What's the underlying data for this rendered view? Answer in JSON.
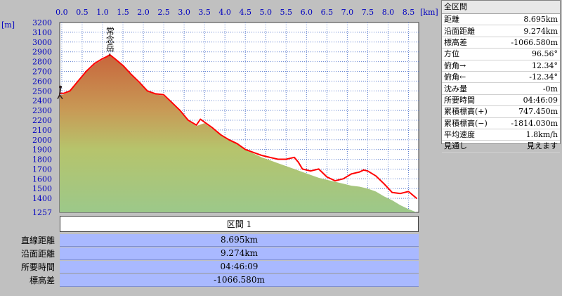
{
  "chart_data": {
    "type": "area",
    "xunit": "[km]",
    "yunit": "[m]",
    "xlim": [
      -0.05,
      8.75
    ],
    "ylim": [
      1257,
      3200
    ],
    "x_ticks": [
      "0.0",
      "0.5",
      "1.0",
      "1.5",
      "2.0",
      "2.5",
      "3.0",
      "3.5",
      "4.0",
      "4.5",
      "5.0",
      "5.5",
      "6.0",
      "6.5",
      "7.0",
      "7.5",
      "8.0",
      "8.5"
    ],
    "y_ticks": [
      "3200",
      "3100",
      "3000",
      "2900",
      "2800",
      "2700",
      "2600",
      "2500",
      "2400",
      "2300",
      "2200",
      "2100",
      "2000",
      "1900",
      "1800",
      "1700",
      "1600",
      "1500",
      "1400",
      "1257"
    ],
    "peak_label": {
      "text": "常念岳",
      "x": 1.18,
      "elevation": 2857
    },
    "series": [
      {
        "role": "elevation-profile",
        "color": "#ff0000",
        "x": [
          -0.05,
          0.05,
          0.2,
          0.4,
          0.6,
          0.8,
          1.0,
          1.1,
          1.18,
          1.3,
          1.5,
          1.7,
          1.9,
          2.1,
          2.3,
          2.5,
          2.7,
          2.9,
          3.1,
          3.3,
          3.4,
          3.5,
          3.7,
          3.9,
          4.1,
          4.3,
          4.5,
          4.7,
          4.9,
          5.1,
          5.3,
          5.5,
          5.7,
          5.8,
          5.9,
          6.1,
          6.3,
          6.5,
          6.7,
          6.9,
          7.1,
          7.3,
          7.4,
          7.5,
          7.7,
          7.9,
          8.1,
          8.3,
          8.5,
          8.7
        ],
        "y": [
          2475,
          2475,
          2500,
          2600,
          2700,
          2780,
          2830,
          2850,
          2870,
          2830,
          2760,
          2670,
          2590,
          2500,
          2470,
          2460,
          2380,
          2300,
          2200,
          2150,
          2210,
          2180,
          2120,
          2050,
          2000,
          1960,
          1900,
          1870,
          1840,
          1820,
          1800,
          1800,
          1820,
          1770,
          1700,
          1680,
          1700,
          1620,
          1580,
          1600,
          1650,
          1670,
          1690,
          1680,
          1630,
          1550,
          1460,
          1450,
          1470,
          1400
        ]
      },
      {
        "role": "terrain",
        "x": [
          -0.05,
          0.05,
          0.2,
          0.4,
          0.6,
          0.8,
          1.0,
          1.1,
          1.18,
          1.3,
          1.5,
          1.7,
          1.9,
          2.1,
          2.3,
          2.5,
          2.7,
          2.9,
          3.1,
          3.3,
          3.5,
          3.7,
          3.9,
          4.1,
          4.3,
          4.5,
          4.7,
          4.9,
          5.1,
          5.3,
          5.5,
          5.7,
          5.9,
          6.1,
          6.3,
          6.5,
          6.7,
          6.9,
          7.1,
          7.3,
          7.5,
          7.7,
          7.9,
          8.1,
          8.3,
          8.5,
          8.7
        ],
        "y": [
          2455,
          2465,
          2495,
          2590,
          2690,
          2770,
          2820,
          2845,
          2865,
          2825,
          2755,
          2660,
          2580,
          2495,
          2465,
          2450,
          2370,
          2290,
          2190,
          2140,
          2170,
          2110,
          2045,
          1995,
          1955,
          1895,
          1860,
          1820,
          1790,
          1760,
          1730,
          1700,
          1670,
          1640,
          1610,
          1590,
          1570,
          1550,
          1530,
          1520,
          1500,
          1470,
          1420,
          1380,
          1330,
          1290,
          1257
        ]
      }
    ]
  },
  "summary": {
    "title": "全区間",
    "rows": [
      {
        "label": "距離",
        "value": "8.695km"
      },
      {
        "label": "沿面距離",
        "value": "9.274km"
      },
      {
        "label": "標高差",
        "value": "-1066.580m"
      },
      {
        "label": "方位",
        "value": "96.56°"
      },
      {
        "label": "俯角→",
        "value": "12.34°"
      },
      {
        "label": "俯角←",
        "value": "-12.34°"
      },
      {
        "label": "沈み量",
        "value": "-0m"
      },
      {
        "label": "所要時間",
        "value": "04:46:09"
      },
      {
        "label": "累積標高(+)",
        "value": "747.450m"
      },
      {
        "label": "累積標高(−)",
        "value": "-1814.030m"
      },
      {
        "label": "平均速度",
        "value": "1.8km/h"
      },
      {
        "label": "見通し",
        "value": "見えます"
      }
    ]
  },
  "section": {
    "header": "区間 1",
    "rows": [
      {
        "label": "直線距離",
        "value": "8.695km"
      },
      {
        "label": "沿面距離",
        "value": "9.274km"
      },
      {
        "label": "所要時間",
        "value": "04:46:09"
      },
      {
        "label": "標高差",
        "value": "-1066.580m"
      }
    ]
  }
}
